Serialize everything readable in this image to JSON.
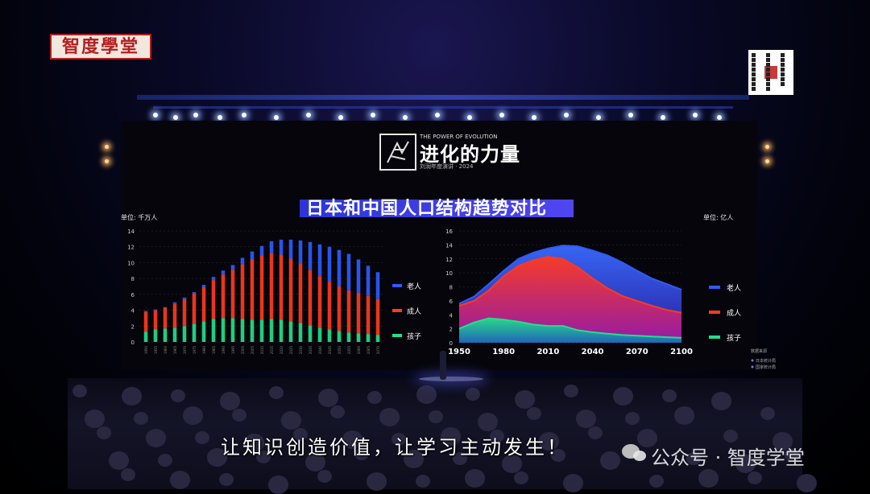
{
  "stamp_text": "智度學堂",
  "event": {
    "logo_en": "THE POWER OF EVOLUTION",
    "logo_cn": "进化的力量",
    "logo_sub": "刘润年度演讲 · 2024"
  },
  "slide_title": "日本和中国人口结构趋势对比",
  "caption": "让知识创造价值，让学习主动发生！",
  "watermark": "公众号 · 智度学堂",
  "colors": {
    "elderly": "#2f5bff",
    "adult": "#ff3a1f",
    "children": "#22e08a",
    "title_band": "#3b3fe6"
  },
  "chart_data": [
    {
      "type": "bar",
      "stacked": true,
      "unit_label": "单位: 千万人",
      "ylim": [
        0,
        14
      ],
      "yticks": [
        0,
        2,
        4,
        6,
        8,
        10,
        12,
        14
      ],
      "categories": [
        "1950",
        "1955",
        "1960",
        "1965",
        "1970",
        "1975",
        "1980",
        "1985",
        "1990",
        "1995",
        "2000",
        "2005",
        "2010",
        "2015",
        "2020",
        "2025",
        "2030",
        "2035",
        "2040",
        "2045",
        "2050",
        "2055",
        "2060",
        "2065",
        "2070"
      ],
      "series": [
        {
          "name": "孩子",
          "values": [
            1.3,
            1.6,
            1.7,
            1.8,
            2.0,
            2.3,
            2.6,
            2.9,
            3.0,
            3.0,
            2.9,
            2.8,
            2.8,
            2.9,
            2.8,
            2.6,
            2.4,
            2.1,
            1.8,
            1.6,
            1.4,
            1.2,
            1.1,
            1.0,
            0.9
          ]
        },
        {
          "name": "成人",
          "values": [
            2.5,
            2.4,
            2.6,
            3.0,
            3.4,
            3.8,
            4.3,
            4.9,
            5.5,
            6.1,
            6.9,
            7.6,
            8.1,
            8.3,
            8.2,
            7.9,
            7.5,
            7.0,
            6.5,
            6.0,
            5.6,
            5.3,
            5.1,
            4.8,
            4.5
          ]
        },
        {
          "name": "老人",
          "values": [
            0.1,
            0.1,
            0.1,
            0.2,
            0.2,
            0.2,
            0.3,
            0.4,
            0.5,
            0.6,
            0.8,
            1.0,
            1.2,
            1.5,
            1.9,
            2.4,
            2.9,
            3.5,
            4.0,
            4.4,
            4.6,
            4.6,
            4.2,
            3.8,
            3.4
          ]
        }
      ]
    },
    {
      "type": "area",
      "unit_label": "单位: 亿人",
      "ylim": [
        0,
        16
      ],
      "yticks": [
        0,
        2,
        4,
        6,
        8,
        10,
        12,
        14,
        16
      ],
      "xticks": [
        1950,
        1980,
        2010,
        2040,
        2070,
        2100
      ],
      "xlim": [
        1950,
        2100
      ],
      "x": [
        1950,
        1960,
        1970,
        1980,
        1990,
        2000,
        2010,
        2020,
        2030,
        2040,
        2050,
        2060,
        2070,
        2080,
        2090,
        2100
      ],
      "series": [
        {
          "name": "孩子",
          "values": [
            2.0,
            2.9,
            3.5,
            3.3,
            3.0,
            2.6,
            2.4,
            2.4,
            1.8,
            1.5,
            1.3,
            1.1,
            1.0,
            0.9,
            0.8,
            0.7
          ]
        },
        {
          "name": "成人",
          "values": [
            5.3,
            6.0,
            7.5,
            9.5,
            11.0,
            11.8,
            12.3,
            12.0,
            10.8,
            9.2,
            7.8,
            6.7,
            6.0,
            5.3,
            4.7,
            4.3
          ]
        },
        {
          "name": "老人",
          "values": [
            5.6,
            6.6,
            8.4,
            10.3,
            12.0,
            12.9,
            13.5,
            13.9,
            13.8,
            13.2,
            12.5,
            11.5,
            10.3,
            9.2,
            8.4,
            7.6
          ]
        }
      ],
      "source_label": "数据来源",
      "sources": [
        "日本统计局",
        "国家统计局"
      ]
    }
  ]
}
